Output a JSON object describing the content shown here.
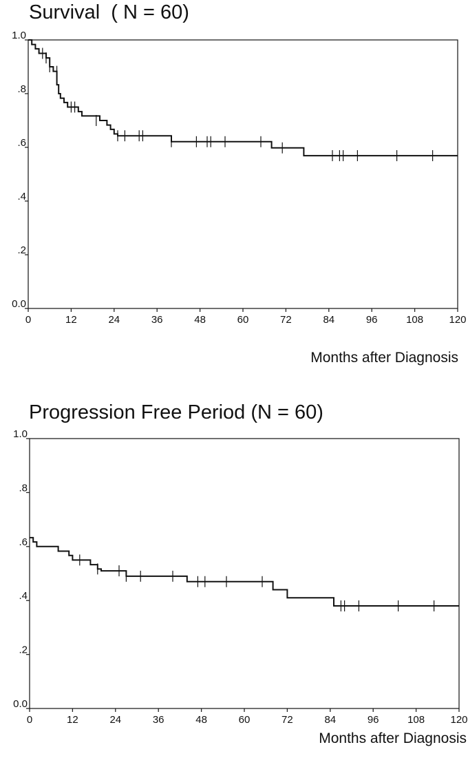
{
  "chart_data": [
    {
      "type": "line",
      "title": "Survival  ( N = 60)",
      "xlabel": "Months after Diagnosis",
      "ylabel": "",
      "xlim": [
        0,
        120
      ],
      "ylim": [
        0,
        1
      ],
      "xticks": [
        0,
        12,
        24,
        36,
        48,
        60,
        72,
        84,
        96,
        108,
        120
      ],
      "yticks": [
        0,
        0.2,
        0.4,
        0.6,
        0.8,
        1.0
      ],
      "ytick_labels": [
        "0.0",
        ".2",
        ".4",
        ".6",
        ".8",
        "1.0"
      ],
      "grid": false,
      "series": [
        {
          "steps": [
            [
              0,
              1.0
            ],
            [
              1,
              0.983
            ],
            [
              2,
              0.967
            ],
            [
              3,
              0.95
            ],
            [
              5,
              0.933
            ],
            [
              6,
              0.9
            ],
            [
              7,
              0.883
            ],
            [
              8,
              0.833
            ],
            [
              8.5,
              0.8
            ],
            [
              9,
              0.783
            ],
            [
              10,
              0.767
            ],
            [
              11,
              0.75
            ],
            [
              14,
              0.733
            ],
            [
              15,
              0.717
            ],
            [
              20,
              0.7
            ],
            [
              22,
              0.683
            ],
            [
              23,
              0.667
            ],
            [
              24,
              0.65
            ],
            [
              25,
              0.643
            ],
            [
              40,
              0.621
            ],
            [
              66,
              0.621
            ],
            [
              68,
              0.598
            ],
            [
              77,
              0.569
            ],
            [
              120,
              0.569
            ]
          ],
          "censored": [
            [
              4,
              0.95
            ],
            [
              5,
              0.933
            ],
            [
              6,
              0.9
            ],
            [
              8,
              0.883
            ],
            [
              12,
              0.75
            ],
            [
              13,
              0.75
            ],
            [
              19,
              0.7
            ],
            [
              25,
              0.643
            ],
            [
              27,
              0.643
            ],
            [
              31,
              0.643
            ],
            [
              32,
              0.643
            ],
            [
              40,
              0.621
            ],
            [
              47,
              0.621
            ],
            [
              50,
              0.621
            ],
            [
              51,
              0.621
            ],
            [
              55,
              0.621
            ],
            [
              65,
              0.621
            ],
            [
              71,
              0.598
            ],
            [
              85,
              0.569
            ],
            [
              87,
              0.569
            ],
            [
              88,
              0.569
            ],
            [
              92,
              0.569
            ],
            [
              103,
              0.569
            ],
            [
              113,
              0.569
            ]
          ]
        }
      ]
    },
    {
      "type": "line",
      "title": "Progression Free Period (N = 60)",
      "xlabel": "Months after Diagnosis",
      "ylabel": "",
      "xlim": [
        0,
        120
      ],
      "ylim": [
        0,
        1
      ],
      "xticks": [
        0,
        12,
        24,
        36,
        48,
        60,
        72,
        84,
        96,
        108,
        120
      ],
      "yticks": [
        0,
        0.2,
        0.4,
        0.6,
        0.8,
        1.0
      ],
      "ytick_labels": [
        "0.0",
        ".2",
        ".4",
        ".6",
        ".8",
        "1.0"
      ],
      "grid": false,
      "series": [
        {
          "steps": [
            [
              0,
              0.633
            ],
            [
              1,
              0.617
            ],
            [
              2,
              0.6
            ],
            [
              8,
              0.583
            ],
            [
              11,
              0.567
            ],
            [
              12,
              0.55
            ],
            [
              17,
              0.533
            ],
            [
              19,
              0.517
            ],
            [
              20,
              0.51
            ],
            [
              27,
              0.49
            ],
            [
              42,
              0.49
            ],
            [
              44,
              0.47
            ],
            [
              66,
              0.47
            ],
            [
              68,
              0.44
            ],
            [
              72,
              0.41
            ],
            [
              85,
              0.38
            ],
            [
              120,
              0.38
            ]
          ],
          "censored": [
            [
              14,
              0.55
            ],
            [
              19,
              0.517
            ],
            [
              25,
              0.51
            ],
            [
              27,
              0.49
            ],
            [
              31,
              0.49
            ],
            [
              40,
              0.49
            ],
            [
              47,
              0.47
            ],
            [
              49,
              0.47
            ],
            [
              55,
              0.47
            ],
            [
              65,
              0.47
            ],
            [
              87,
              0.38
            ],
            [
              88,
              0.38
            ],
            [
              92,
              0.38
            ],
            [
              103,
              0.38
            ],
            [
              113,
              0.38
            ]
          ]
        }
      ]
    }
  ]
}
